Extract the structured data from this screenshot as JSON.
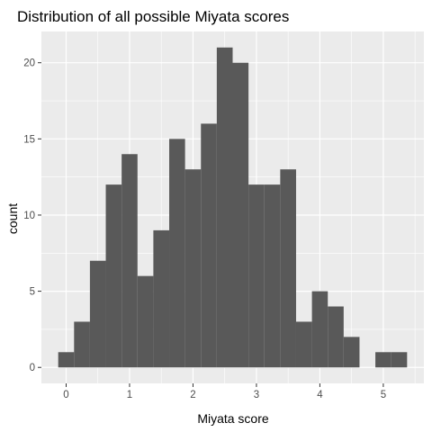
{
  "chart_data": {
    "type": "bar",
    "title": "Distribution of all possible Miyata scores",
    "xlabel": "Miyata score",
    "ylabel": "count",
    "bin_width": 0.25,
    "bins": [
      {
        "x_start": -0.125,
        "x_end": 0.125,
        "count": 1
      },
      {
        "x_start": 0.125,
        "x_end": 0.375,
        "count": 3
      },
      {
        "x_start": 0.375,
        "x_end": 0.625,
        "count": 7
      },
      {
        "x_start": 0.625,
        "x_end": 0.875,
        "count": 12
      },
      {
        "x_start": 0.875,
        "x_end": 1.125,
        "count": 14
      },
      {
        "x_start": 1.125,
        "x_end": 1.375,
        "count": 6
      },
      {
        "x_start": 1.375,
        "x_end": 1.625,
        "count": 9
      },
      {
        "x_start": 1.625,
        "x_end": 1.875,
        "count": 15
      },
      {
        "x_start": 1.875,
        "x_end": 2.125,
        "count": 13
      },
      {
        "x_start": 2.125,
        "x_end": 2.375,
        "count": 16
      },
      {
        "x_start": 2.375,
        "x_end": 2.625,
        "count": 21
      },
      {
        "x_start": 2.625,
        "x_end": 2.875,
        "count": 20
      },
      {
        "x_start": 2.875,
        "x_end": 3.125,
        "count": 12
      },
      {
        "x_start": 3.125,
        "x_end": 3.375,
        "count": 12
      },
      {
        "x_start": 3.375,
        "x_end": 3.625,
        "count": 13
      },
      {
        "x_start": 3.625,
        "x_end": 3.875,
        "count": 3
      },
      {
        "x_start": 3.875,
        "x_end": 4.125,
        "count": 5
      },
      {
        "x_start": 4.125,
        "x_end": 4.375,
        "count": 4
      },
      {
        "x_start": 4.375,
        "x_end": 4.625,
        "count": 2
      },
      {
        "x_start": 4.625,
        "x_end": 4.875,
        "count": 0
      },
      {
        "x_start": 4.875,
        "x_end": 5.125,
        "count": 1
      },
      {
        "x_start": 5.125,
        "x_end": 5.375,
        "count": 1
      }
    ],
    "xlim": [
      -0.39,
      5.64
    ],
    "ylim": [
      -1.05,
      22.05
    ],
    "x_ticks": [
      0,
      1,
      2,
      3,
      4,
      5
    ],
    "x_tick_labels": [
      "0",
      "1",
      "2",
      "3",
      "4",
      "5"
    ],
    "y_ticks": [
      0,
      5,
      10,
      15,
      20
    ],
    "y_tick_labels": [
      "0",
      "5",
      "10",
      "15",
      "20"
    ],
    "grid": true,
    "legend": "none",
    "colors": {
      "bar": "#595959",
      "panel_background": "#ebebeb",
      "grid_major": "#ffffff",
      "tick_text": "#4d4d4d",
      "tick_mark": "#333333"
    }
  }
}
